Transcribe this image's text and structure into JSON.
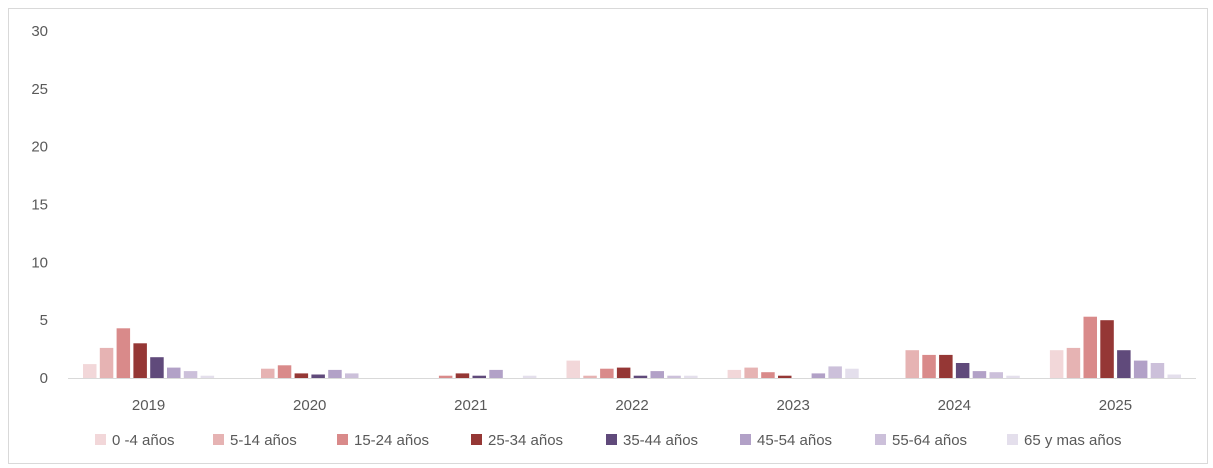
{
  "chart_data": {
    "type": "bar",
    "title": "",
    "xlabel": "",
    "ylabel": "",
    "ylim": [
      0,
      30
    ],
    "yticks": [
      0,
      5,
      10,
      15,
      20,
      25,
      30
    ],
    "grid": false,
    "legend_position": "bottom",
    "categories": [
      "2019",
      "2020",
      "2021",
      "2022",
      "2023",
      "2024",
      "2025"
    ],
    "series": [
      {
        "name": "0 -4 años",
        "color": "#f2d7d9",
        "values": [
          1.2,
          0.0,
          0.0,
          1.5,
          0.7,
          0.0,
          2.4
        ]
      },
      {
        "name": "5-14 años",
        "color": "#e6b3b3",
        "values": [
          2.6,
          0.8,
          0.0,
          0.2,
          0.9,
          2.4,
          2.6
        ]
      },
      {
        "name": "15-24 años",
        "color": "#d98a8a",
        "values": [
          4.3,
          1.1,
          0.2,
          0.8,
          0.5,
          2.0,
          5.3
        ]
      },
      {
        "name": "25-34 años",
        "color": "#953735",
        "values": [
          3.0,
          0.4,
          0.4,
          0.9,
          0.2,
          2.0,
          5.0
        ]
      },
      {
        "name": "35-44 años",
        "color": "#604a7b",
        "values": [
          1.8,
          0.3,
          0.2,
          0.2,
          0.0,
          1.3,
          2.4
        ]
      },
      {
        "name": "45-54 años",
        "color": "#b2a1c7",
        "values": [
          0.9,
          0.7,
          0.7,
          0.6,
          0.4,
          0.6,
          1.5
        ]
      },
      {
        "name": "55-64 años",
        "color": "#ccc0da",
        "values": [
          0.6,
          0.4,
          0.0,
          0.2,
          1.0,
          0.5,
          1.3
        ]
      },
      {
        "name": "65 y mas años",
        "color": "#e4dfec",
        "values": [
          0.2,
          0.0,
          0.2,
          0.2,
          0.8,
          0.2,
          0.3
        ]
      }
    ]
  }
}
